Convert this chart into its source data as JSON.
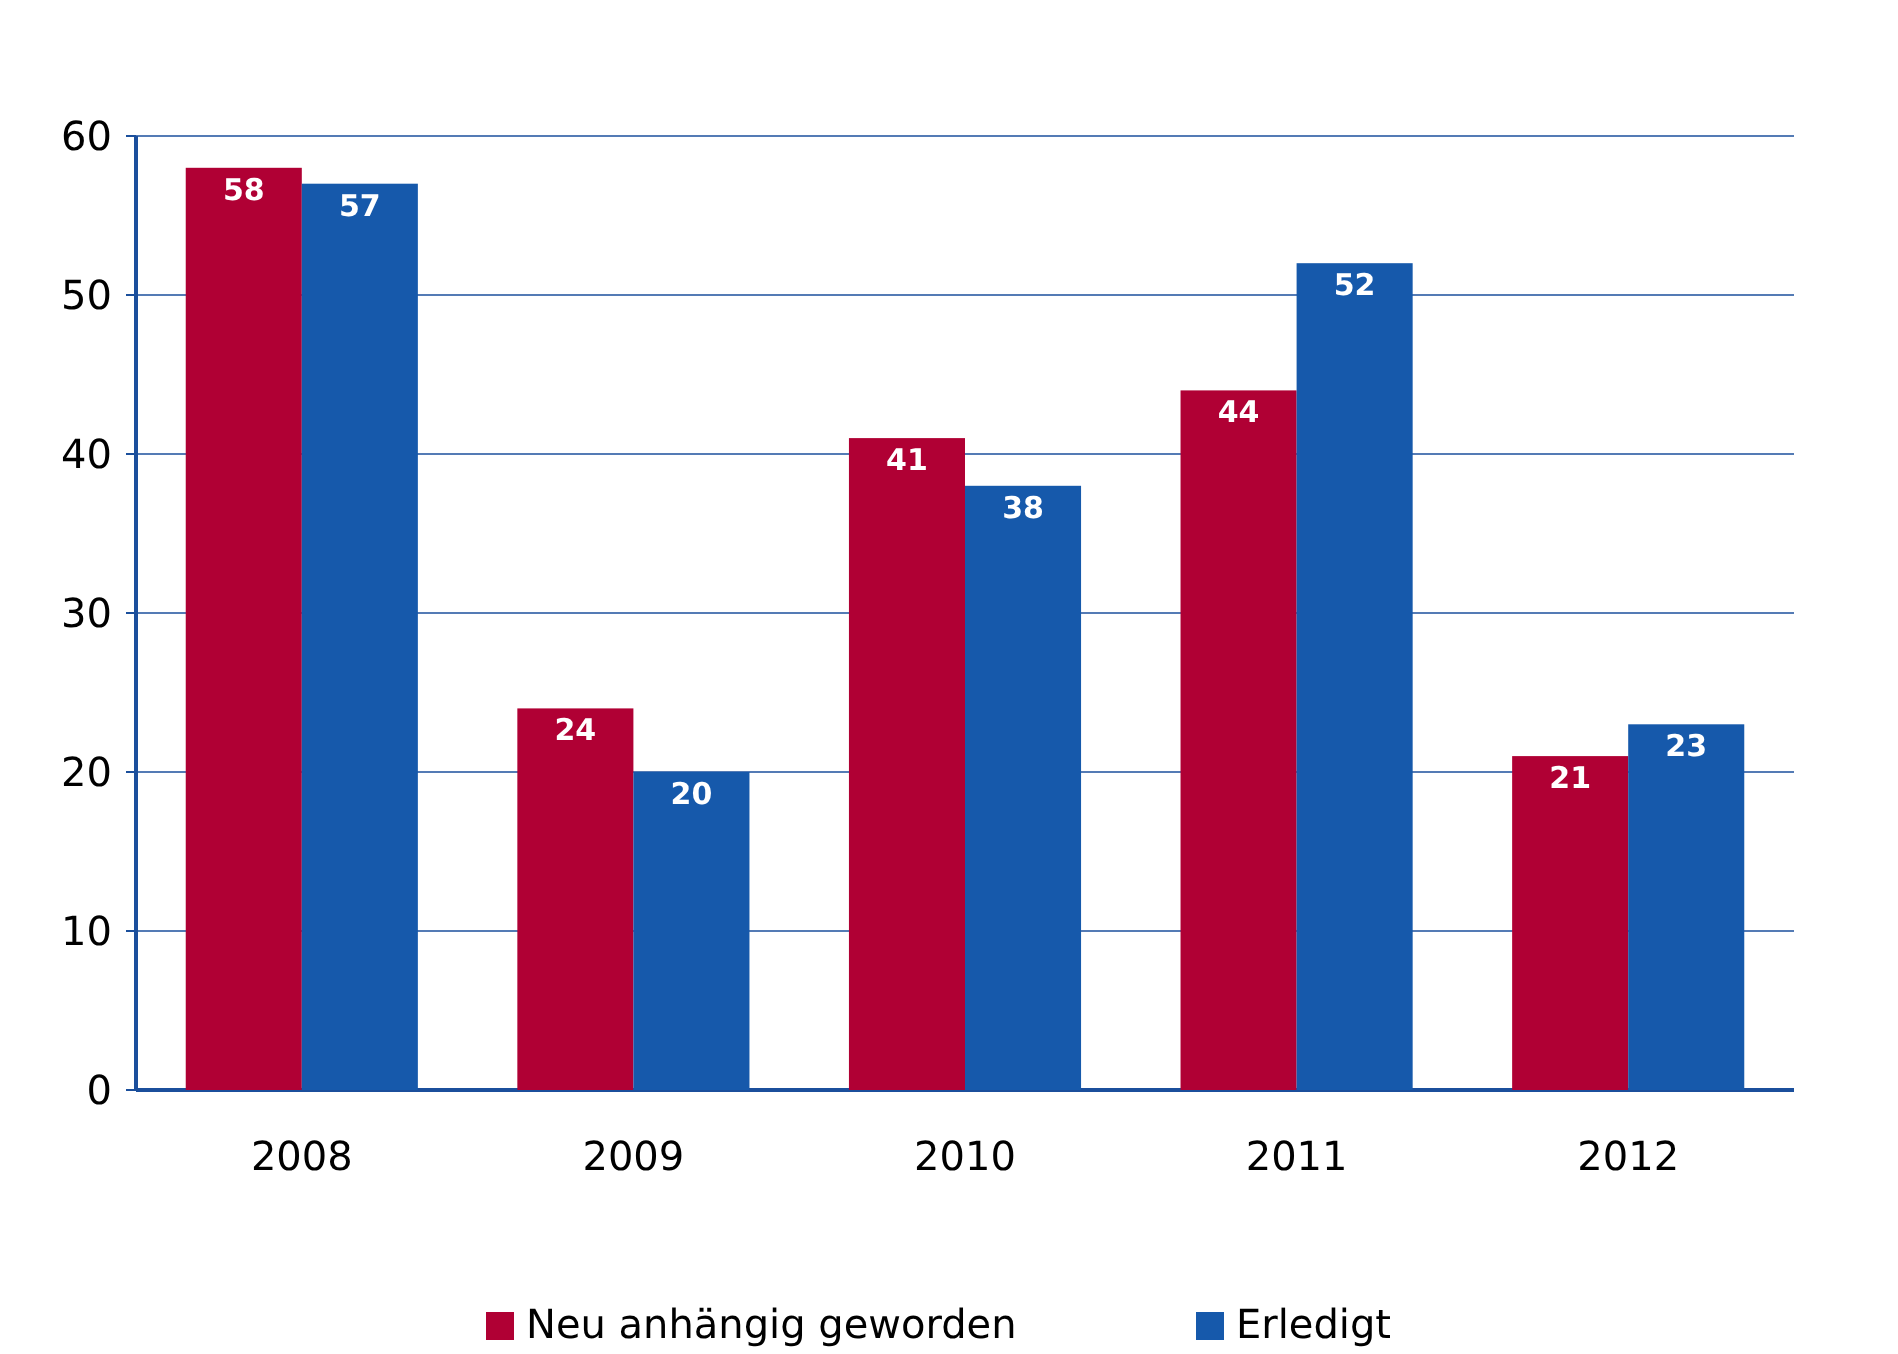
{
  "chart_data": {
    "type": "bar",
    "categories": [
      "2008",
      "2009",
      "2010",
      "2011",
      "2012"
    ],
    "series": [
      {
        "name": "Neu anhängig geworden",
        "color": "#b00034",
        "values": [
          58,
          24,
          41,
          44,
          21
        ]
      },
      {
        "name": "Erledigt",
        "color": "#1659ab",
        "values": [
          57,
          20,
          38,
          52,
          23
        ]
      }
    ],
    "ylim": [
      0,
      60
    ],
    "yticks": [
      0,
      10,
      20,
      30,
      40,
      50,
      60
    ],
    "grid": "y",
    "legend": "bottom",
    "data_labels": true
  }
}
